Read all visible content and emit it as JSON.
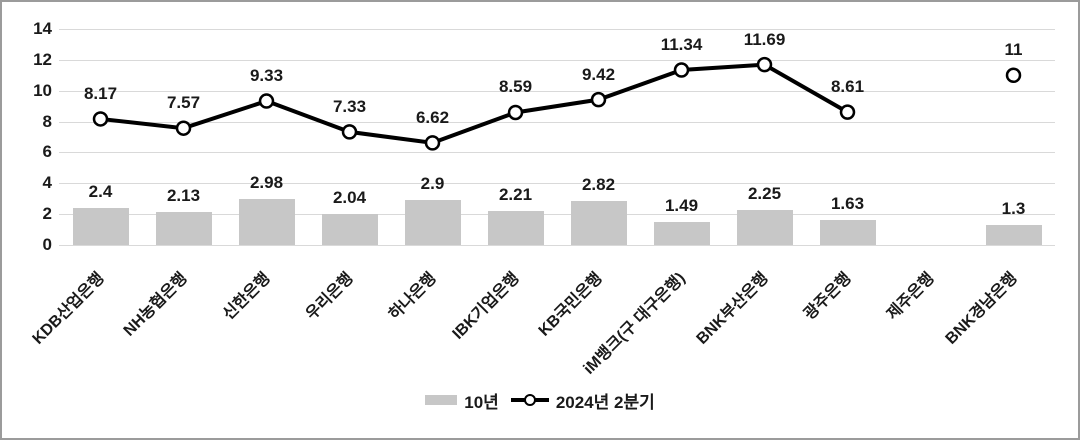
{
  "chart_data": {
    "type": "combo",
    "categories": [
      "KDB산업은행",
      "NH농협은행",
      "신한은행",
      "우리은행",
      "하나은행",
      "IBK기업은행",
      "KB국민은행",
      "iM뱅크(구 대구은행)",
      "BNK부산은행",
      "광주은행",
      "제주은행",
      "BNK경남은행"
    ],
    "series": [
      {
        "name": "10년",
        "type": "bar",
        "color": "#c7c7c7",
        "values": [
          2.4,
          2.13,
          2.98,
          2.04,
          2.9,
          2.21,
          2.82,
          1.49,
          2.25,
          1.63,
          null,
          1.3
        ],
        "value_labels": [
          "2.4",
          "2.13",
          "2.98",
          "2.04",
          "2.9",
          "2.21",
          "2.82",
          "1.49",
          "2.25",
          "1.63",
          "",
          "1.3"
        ]
      },
      {
        "name": "2024년 2분기",
        "type": "line",
        "color": "#000000",
        "marker": "open-circle",
        "marker_fill": "#ffffff",
        "values": [
          8.17,
          7.57,
          9.33,
          7.33,
          6.62,
          8.59,
          9.42,
          11.34,
          11.69,
          8.61,
          null,
          11
        ],
        "value_labels": [
          "8.17",
          "7.57",
          "9.33",
          "7.33",
          "6.62",
          "8.59",
          "9.42",
          "11.34",
          "11.69",
          "8.61",
          "",
          "11"
        ]
      }
    ],
    "ylim": [
      0,
      14
    ],
    "yticks": [
      "0",
      "2",
      "4",
      "6",
      "8",
      "10",
      "12",
      "14"
    ],
    "grid": true,
    "legend_position": "bottom",
    "colors": {
      "grid": "#d9d9d9",
      "border": "#9b9b9b",
      "text": "#1a1a1a",
      "bar": "#c7c7c7",
      "line": "#000000",
      "marker_fill": "#ffffff"
    }
  }
}
